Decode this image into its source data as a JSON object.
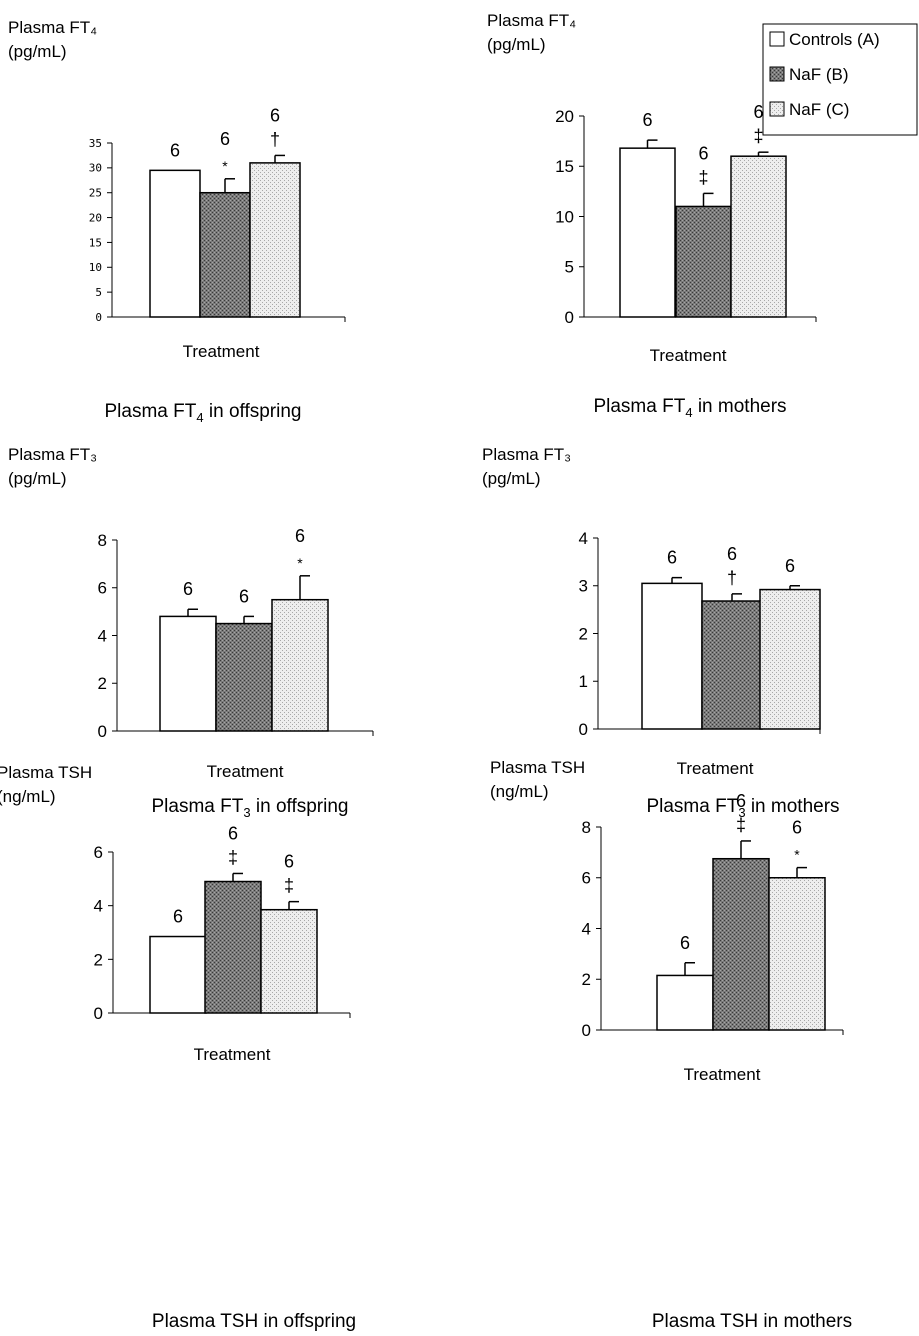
{
  "figure": {
    "legend": {
      "placement": "top-right",
      "entries": [
        {
          "key": "A",
          "label": "Controls (A)",
          "fill": "white"
        },
        {
          "key": "B",
          "label": "NaF (B)",
          "fill": "dark-stipple"
        },
        {
          "key": "C",
          "label": "NaF (C)",
          "fill": "light-stipple"
        }
      ]
    },
    "colors": {
      "axis": "#000000",
      "bar_outline": "#000000",
      "dark_stipple": "#7a7a7a",
      "light_stipple": "#dcdcdc",
      "white": "#ffffff"
    }
  },
  "chart_data": [
    {
      "type": "bar",
      "panel": "fT4-offspring",
      "ylabel": "Plasma FT₄",
      "ylabel_line2": "(pg/mL)",
      "xlabel": "Treatment",
      "caption_prefix": "Plasma FT",
      "caption_sub": "4",
      "caption_suffix": " in offspring",
      "ylim": [
        0,
        35
      ],
      "yticks": [
        0,
        5,
        10,
        15,
        20,
        25,
        30,
        35
      ],
      "grid": false,
      "categories": [
        "Controls (A)",
        "NaF (B)",
        "NaF (C)"
      ],
      "values": [
        29.5,
        25,
        31
      ],
      "errors": [
        0,
        2.8,
        1.5
      ],
      "n_labels": [
        "6",
        "6",
        "6"
      ],
      "significance": [
        "",
        "*",
        "†"
      ]
    },
    {
      "type": "bar",
      "panel": "fT4-mothers",
      "ylabel": "Plasma FT₄",
      "ylabel_line2": "(pg/mL)",
      "xlabel": "Treatment",
      "caption_prefix": "Plasma FT",
      "caption_sub": "4",
      "caption_suffix": " in mothers",
      "ylim": [
        0,
        20
      ],
      "yticks": [
        0,
        5,
        10,
        15,
        20
      ],
      "grid": false,
      "categories": [
        "Controls (A)",
        "NaF (B)",
        "NaF (C)"
      ],
      "values": [
        16.8,
        11,
        16
      ],
      "errors": [
        0.8,
        1.3,
        0.4
      ],
      "n_labels": [
        "6",
        "6",
        "6"
      ],
      "significance": [
        "",
        "‡",
        "‡"
      ]
    },
    {
      "type": "bar",
      "panel": "fT3-offspring",
      "ylabel": "Plasma FT₃",
      "ylabel_line2": "(pg/mL)",
      "xlabel": "Treatment",
      "caption_prefix": "Plasma FT",
      "caption_sub": "3",
      "caption_suffix": " in offspring",
      "ylim": [
        0,
        8
      ],
      "yticks": [
        0,
        2,
        4,
        6,
        8
      ],
      "grid": false,
      "categories": [
        "Controls (A)",
        "NaF (B)",
        "NaF (C)"
      ],
      "values": [
        4.8,
        4.5,
        5.5
      ],
      "errors": [
        0.3,
        0.3,
        1.0
      ],
      "n_labels": [
        "6",
        "6",
        "6"
      ],
      "significance": [
        "",
        "",
        "*"
      ]
    },
    {
      "type": "bar",
      "panel": "fT3-mothers",
      "ylabel": "Plasma FT₃",
      "ylabel_line2": "(pg/mL)",
      "xlabel": "Treatment",
      "caption_prefix": "Plasma FT",
      "caption_sub": "3",
      "caption_suffix": " in mothers",
      "ylim": [
        0,
        4
      ],
      "yticks": [
        0,
        1,
        2,
        3,
        4
      ],
      "grid": false,
      "categories": [
        "Controls (A)",
        "NaF (B)",
        "NaF (C)"
      ],
      "values": [
        3.05,
        2.68,
        2.92
      ],
      "errors": [
        0.12,
        0.15,
        0.08
      ],
      "n_labels": [
        "6",
        "6",
        "6"
      ],
      "significance": [
        "",
        "†",
        ""
      ]
    },
    {
      "type": "bar",
      "panel": "tsh-offspring",
      "ylabel": "Plasma TSH",
      "ylabel_line2": "(ng/mL)",
      "xlabel": "Treatment",
      "caption_prefix": "Plasma TSH in offspring",
      "caption_sub": "",
      "caption_suffix": "",
      "ylim": [
        0,
        6
      ],
      "yticks": [
        0,
        2,
        4,
        6
      ],
      "grid": false,
      "categories": [
        "Controls (A)",
        "NaF (B)",
        "NaF (C)"
      ],
      "values": [
        2.85,
        4.9,
        3.85
      ],
      "errors": [
        0,
        0.3,
        0.3
      ],
      "n_labels": [
        "6",
        "6",
        "6"
      ],
      "significance": [
        "",
        "‡",
        "‡"
      ]
    },
    {
      "type": "bar",
      "panel": "tsh-mothers",
      "ylabel": "Plasma TSH",
      "ylabel_line2": "(ng/mL)",
      "xlabel": "Treatment",
      "caption_prefix": "Plasma TSH in mothers",
      "caption_sub": "",
      "caption_suffix": "",
      "ylim": [
        0,
        8
      ],
      "yticks": [
        0,
        2,
        4,
        6,
        8
      ],
      "grid": false,
      "categories": [
        "Controls (A)",
        "NaF (B)",
        "NaF (C)"
      ],
      "values": [
        2.15,
        6.75,
        6.0
      ],
      "errors": [
        0.5,
        0.7,
        0.4
      ],
      "n_labels": [
        "6",
        "6",
        "6"
      ],
      "significance": [
        "",
        "‡",
        "*"
      ]
    }
  ]
}
